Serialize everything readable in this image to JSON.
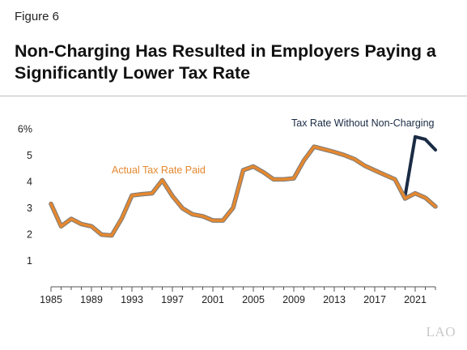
{
  "figure_label": "Figure 6",
  "title": "Non-Charging Has Resulted in Employers Paying a Significantly Lower Tax Rate",
  "logo": "LAO",
  "colors": {
    "actual": "#e5882f",
    "actual_outline": "#7a7a7a",
    "without": "#1a2b44",
    "axis": "#555555"
  },
  "chart_data": {
    "type": "line",
    "title": "",
    "xlabel": "",
    "ylabel": "",
    "xlim": [
      1985,
      2023
    ],
    "ylim": [
      0,
      6
    ],
    "grid": false,
    "x_tick_labels": [
      "1985",
      "1989",
      "1993",
      "1997",
      "2001",
      "2005",
      "2009",
      "2013",
      "2017",
      "2021"
    ],
    "x_tick_values": [
      1985,
      1989,
      1993,
      1997,
      2001,
      2005,
      2009,
      2013,
      2017,
      2021
    ],
    "y_tick_labels": [
      "1",
      "2",
      "3",
      "4",
      "5",
      "6%"
    ],
    "y_tick_values": [
      1,
      2,
      3,
      4,
      5,
      6
    ],
    "series": [
      {
        "name": "Actual Tax Rate Paid",
        "x": [
          1985,
          1986,
          1987,
          1988,
          1989,
          1990,
          1991,
          1992,
          1993,
          1994,
          1995,
          1996,
          1997,
          1998,
          1999,
          2000,
          2001,
          2002,
          2003,
          2004,
          2005,
          2006,
          2007,
          2008,
          2009,
          2010,
          2011,
          2012,
          2013,
          2014,
          2015,
          2016,
          2017,
          2018,
          2019,
          2020,
          2021,
          2022,
          2023
        ],
        "values": [
          3.15,
          2.3,
          2.58,
          2.38,
          2.3,
          1.98,
          1.95,
          2.6,
          3.47,
          3.52,
          3.55,
          4.05,
          3.45,
          2.98,
          2.75,
          2.68,
          2.52,
          2.52,
          3.0,
          4.43,
          4.57,
          4.35,
          4.08,
          4.08,
          4.12,
          4.8,
          5.32,
          5.22,
          5.12,
          5.0,
          4.85,
          4.6,
          4.42,
          4.25,
          4.08,
          3.35,
          3.55,
          3.38,
          3.05
        ]
      },
      {
        "name": "Tax Rate Without Non-Charging",
        "x": [
          2020,
          2021,
          2022,
          2023
        ],
        "values": [
          3.45,
          5.7,
          5.6,
          5.2
        ]
      }
    ]
  }
}
